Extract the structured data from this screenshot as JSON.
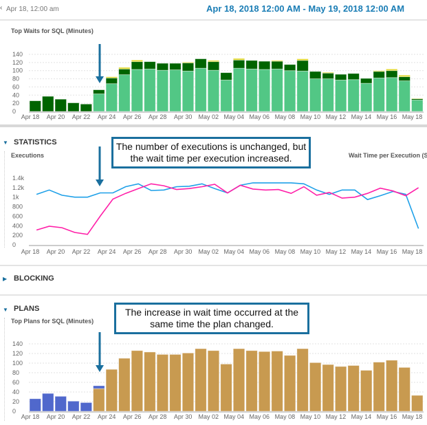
{
  "header": {
    "back_label": "Apr 18, 12:00 am",
    "range": "Apr 18, 2018 12:00 AM - May 19, 2018 12:00 AM"
  },
  "colors": {
    "accent": "#1a7db5",
    "light_green": "#52c785",
    "dark_green": "#006400",
    "yellow": "#e0d830",
    "executions": "#1ea0e8",
    "wait_time": "#ff1fa8",
    "plan_blue": "#5068cc",
    "plan_gold": "#c89a50"
  },
  "x_labels": [
    "Apr 18",
    "Apr 20",
    "Apr 22",
    "Apr 24",
    "Apr 26",
    "Apr 28",
    "Apr 30",
    "May 02",
    "May 04",
    "May 06",
    "May 08",
    "May 10",
    "May 12",
    "May 14",
    "May 16",
    "May 18"
  ],
  "waits": {
    "title": "Top Waits for SQL (Minutes)"
  },
  "statistics": {
    "section": "STATISTICS",
    "left_label": "Executions",
    "right_label": "Wait Time per Execution (Sec",
    "callout": "The number of executions is unchanged, but the wait time per execution increased."
  },
  "blocking": {
    "section": "BLOCKING"
  },
  "plans": {
    "section": "PLANS",
    "title": "Top Plans for SQL (Minutes)",
    "callout": "The increase in wait time occurred at the same time the plan changed."
  },
  "chart_data": [
    {
      "type": "bar",
      "stacked": true,
      "title": "Top Waits for SQL (Minutes)",
      "ylim": [
        0,
        140
      ],
      "yticks": [
        "0",
        "20",
        "40",
        "60",
        "80",
        "100",
        "120",
        "140"
      ],
      "grid": true,
      "categories_first": "Apr 18",
      "categories_last": "May 18",
      "count": 31,
      "series": [
        {
          "color": "#52c785",
          "values": [
            0,
            0,
            0,
            0,
            0,
            43,
            68,
            90,
            103,
            104,
            101,
            102,
            99,
            106,
            101,
            77,
            106,
            104,
            103,
            104,
            100,
            99,
            80,
            80,
            77,
            78,
            69,
            82,
            83,
            75,
            28
          ]
        },
        {
          "color": "#006400",
          "values": [
            26,
            37,
            30,
            21,
            18,
            10,
            14,
            14,
            19,
            18,
            17,
            16,
            20,
            23,
            21,
            18,
            20,
            21,
            20,
            19,
            15,
            26,
            18,
            14,
            14,
            15,
            12,
            16,
            17,
            10,
            3
          ]
        },
        {
          "color": "#e0d830",
          "values": [
            0,
            0,
            0,
            0,
            0,
            0,
            3,
            4,
            4,
            0,
            0,
            0,
            2,
            0,
            3,
            0,
            4,
            0,
            0,
            2,
            0,
            4,
            0,
            2,
            0,
            0,
            0,
            2,
            4,
            4,
            1
          ]
        }
      ]
    },
    {
      "type": "line",
      "ylim": [
        0,
        1400
      ],
      "yticks": [
        "0",
        "200",
        "400",
        "600",
        "800",
        "1k",
        "1.2k",
        "1.4k"
      ],
      "series": [
        {
          "color": "#1ea0e8",
          "values": [
            1060,
            1150,
            1040,
            1000,
            1000,
            1090,
            1090,
            1220,
            1280,
            1140,
            1150,
            1220,
            1230,
            1280,
            1180,
            1090,
            1250,
            1300,
            1300,
            1300,
            1300,
            1280,
            1150,
            1060,
            1150,
            1150,
            950,
            1030,
            1120,
            1060,
            340
          ]
        },
        {
          "color": "#ff1fa8",
          "values": [
            310,
            390,
            360,
            260,
            220,
            600,
            960,
            1080,
            1180,
            1280,
            1240,
            1160,
            1180,
            1220,
            1270,
            1090,
            1250,
            1170,
            1150,
            1160,
            1080,
            1220,
            1040,
            1100,
            980,
            1000,
            1080,
            1190,
            1130,
            1030,
            1200
          ]
        }
      ]
    },
    {
      "type": "bar",
      "stacked": true,
      "title": "Top Plans for SQL (Minutes)",
      "ylim": [
        0,
        140
      ],
      "yticks": [
        "0",
        "20",
        "40",
        "60",
        "80",
        "100",
        "120",
        "140"
      ],
      "grid": true,
      "series": [
        {
          "color": "#c89a50",
          "values": [
            0,
            0,
            0,
            0,
            0,
            47,
            87,
            110,
            126,
            123,
            118,
            118,
            121,
            130,
            126,
            98,
            130,
            126,
            124,
            125,
            116,
            130,
            101,
            97,
            93,
            95,
            85,
            102,
            106,
            91,
            33
          ]
        },
        {
          "color": "#5068cc",
          "values": [
            26,
            37,
            31,
            21,
            18,
            6,
            0,
            0,
            0,
            0,
            0,
            0,
            0,
            0,
            0,
            0,
            0,
            0,
            0,
            0,
            0,
            0,
            0,
            0,
            0,
            0,
            0,
            0,
            0,
            0,
            0
          ]
        }
      ]
    }
  ]
}
